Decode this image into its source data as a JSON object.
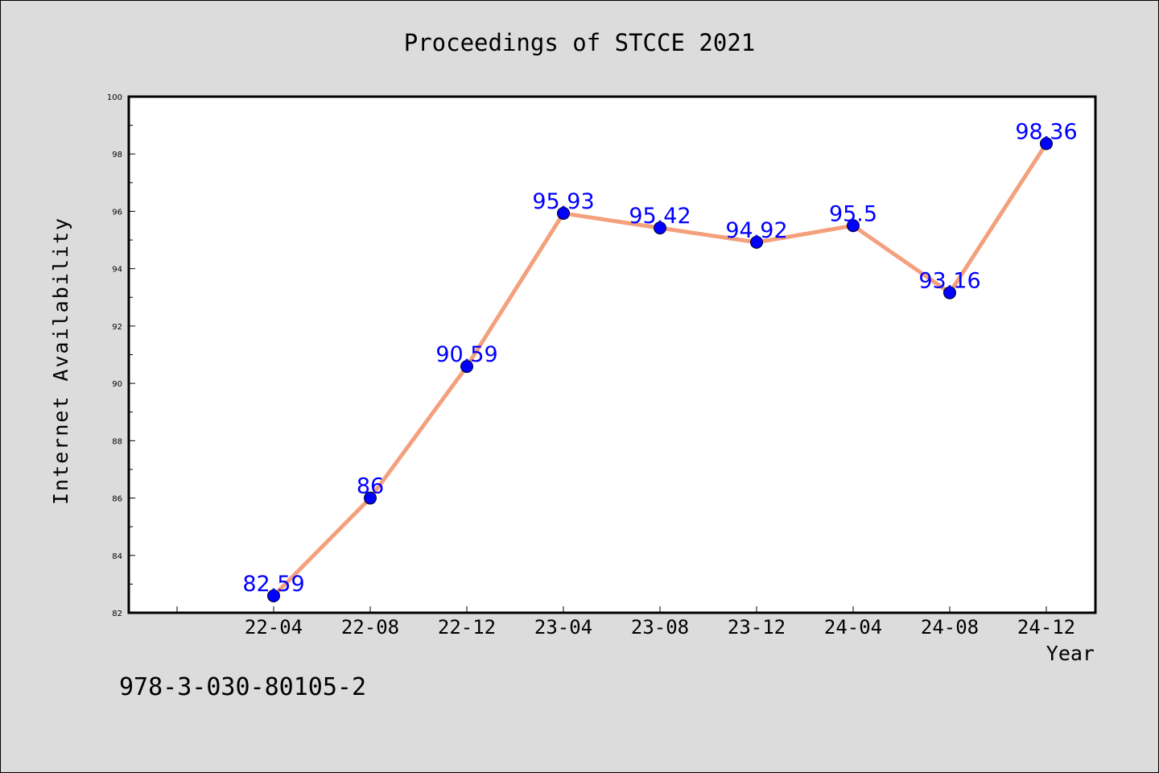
{
  "header": {
    "title": "Proceedings of STCCE 2021"
  },
  "footer": {
    "identifier": "978-3-030-80105-2"
  },
  "chart_data": {
    "type": "line",
    "title": "Proceedings of STCCE 2021",
    "xlabel": "Year",
    "ylabel": "Internet Availability",
    "categories": [
      "22-04",
      "22-08",
      "22-12",
      "23-04",
      "23-08",
      "23-12",
      "24-04",
      "24-08",
      "24-12"
    ],
    "values": [
      82.59,
      86,
      90.59,
      95.93,
      95.42,
      94.92,
      95.5,
      93.16,
      98.36
    ],
    "data_labels": [
      "82.59",
      "86",
      "90.59",
      "95.93",
      "95.42",
      "94.92",
      "95.5",
      "93.16",
      "98.36"
    ],
    "ylim": [
      82,
      100
    ],
    "yticks": [
      82,
      84,
      86,
      88,
      90,
      92,
      94,
      96,
      98,
      100
    ],
    "grid": false,
    "colors": {
      "line": "#f4a07c",
      "marker": "#0000ff",
      "label": "#0000ff",
      "background": "#dcdcdc",
      "plot_background": "#ffffff"
    }
  }
}
